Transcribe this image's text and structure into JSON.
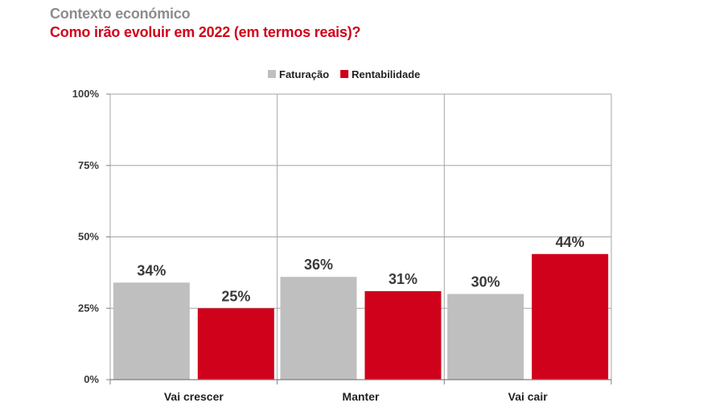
{
  "header": {
    "supertitle": "Contexto económico",
    "title": "Como irão evoluir em 2022 (em termos reais)?"
  },
  "chart_data": {
    "type": "bar",
    "categories": [
      "Vai crescer",
      "Manter",
      "Vai cair"
    ],
    "series": [
      {
        "name": "Faturação",
        "values": [
          34,
          36,
          30
        ],
        "color": "#bfbfbf"
      },
      {
        "name": "Rentabilidade",
        "values": [
          25,
          31,
          44
        ],
        "color": "#d0021b"
      }
    ],
    "data_labels": [
      [
        "34%",
        "36%",
        "30%"
      ],
      [
        "25%",
        "31%",
        "44%"
      ]
    ],
    "y_ticks": [
      0,
      25,
      50,
      75,
      100
    ],
    "y_tick_labels": [
      "0%",
      "25%",
      "50%",
      "75%",
      "100%"
    ],
    "ylim": [
      0,
      100
    ],
    "grid": true,
    "legend_position": "top-center"
  }
}
